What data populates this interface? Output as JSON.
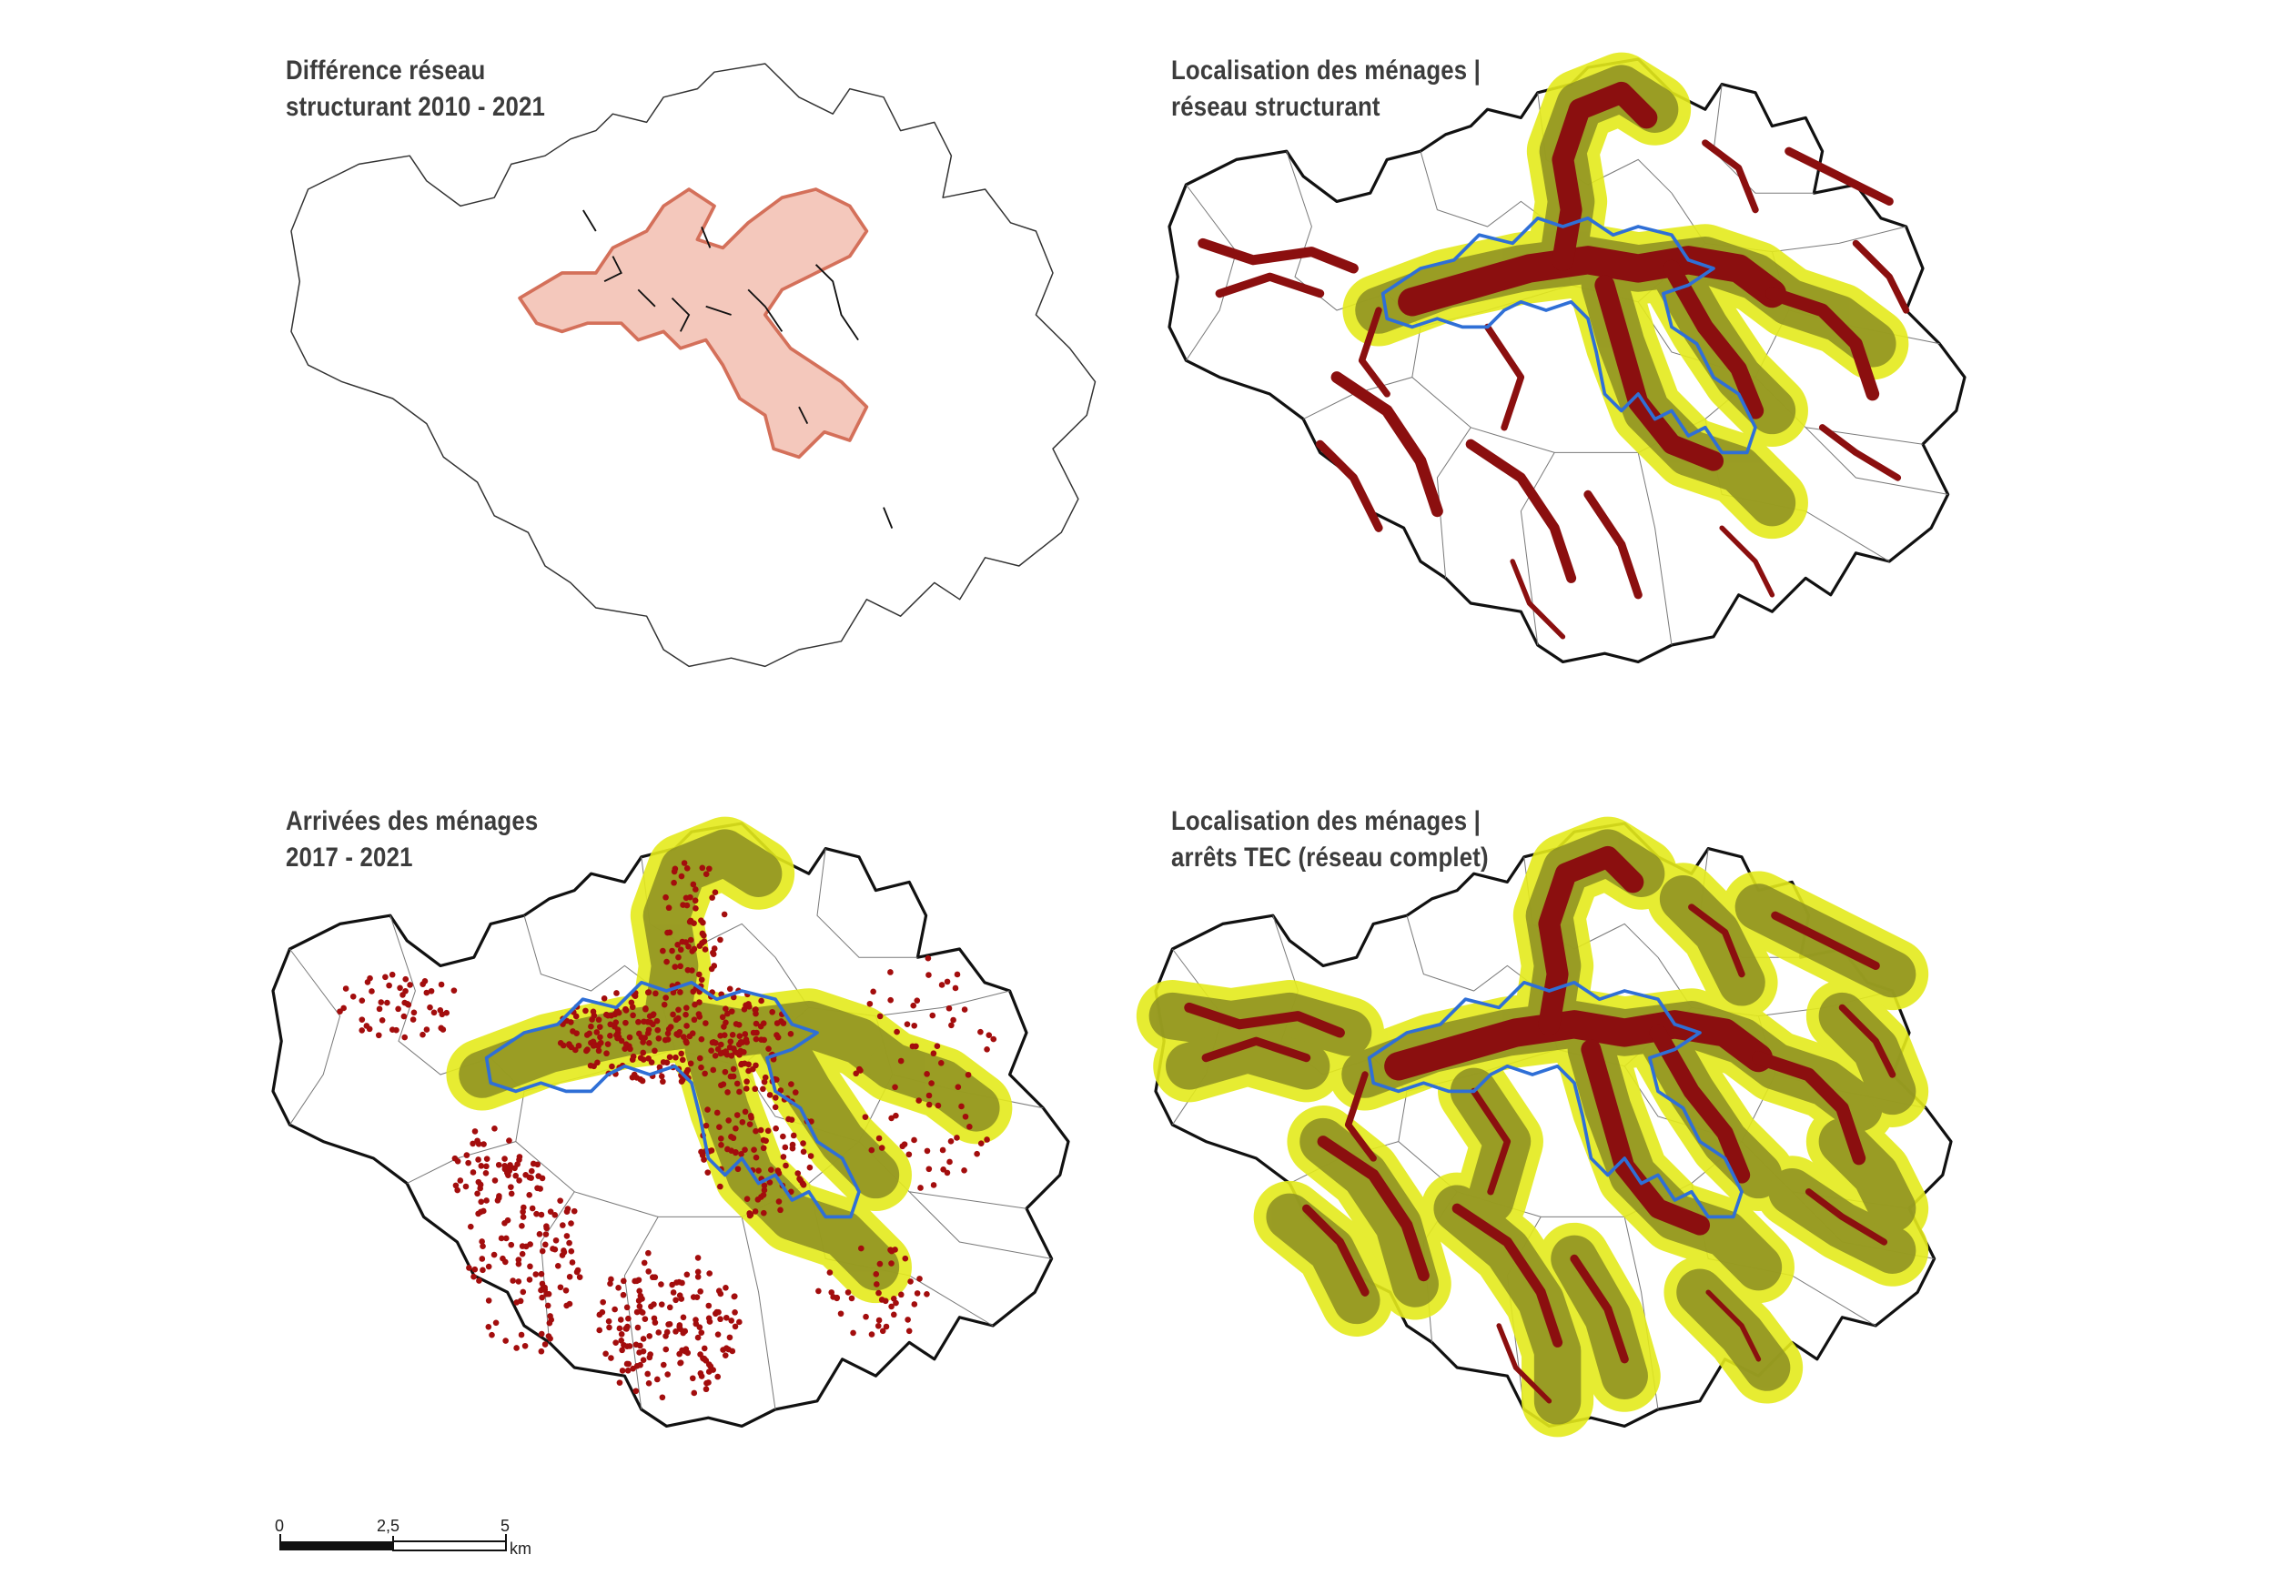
{
  "panels": [
    {
      "id": "diff",
      "title_lines": [
        "Différence réseau",
        "structurant 2010 - 2021"
      ]
    },
    {
      "id": "loc-struct",
      "title_lines": [
        "Localisation des ménages |",
        "réseau structurant"
      ]
    },
    {
      "id": "arrivals",
      "title_lines": [
        "Arrivées des ménages",
        "2017 - 2021"
      ]
    },
    {
      "id": "loc-tec",
      "title_lines": [
        "Localisation des ménages |",
        "arrêts TEC (réseau complet)"
      ]
    }
  ],
  "scale_bar": {
    "ticks": [
      "0",
      "2,5",
      "5"
    ],
    "unit": "km"
  },
  "colors": {
    "boundary": "#111111",
    "household": "#8b0f0f",
    "buffer": "#e4ea1c",
    "buffer_core": "#8c8f22",
    "urban_centre": "#2f6fd6",
    "difference_area": "#f4c8bc",
    "difference_outline": "#d4705a"
  }
}
